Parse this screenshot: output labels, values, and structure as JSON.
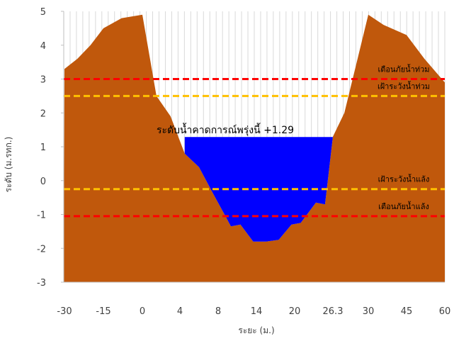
{
  "chart_data": {
    "type": "area",
    "xlabel": "ระยะ (ม.)",
    "ylabel": "ระดับ (ม.รทก.)",
    "ylim": [
      -3,
      5
    ],
    "yticks": [
      "-3",
      "-2",
      "-1",
      "0",
      "1",
      "2",
      "3",
      "4",
      "5"
    ],
    "xtick_labels": [
      "-30",
      "-15",
      "0",
      "4",
      "8",
      "14",
      "20",
      "26.3",
      "30",
      "45",
      "60"
    ],
    "grid": "vertical",
    "series": [
      {
        "kind": "ground",
        "color": "#C0580C",
        "points": [
          [
            -35,
            3.2
          ],
          [
            -30,
            3.3
          ],
          [
            -25,
            3.6
          ],
          [
            -20,
            4.0
          ],
          [
            -15,
            4.5
          ],
          [
            -8,
            4.8
          ],
          [
            0,
            4.9
          ],
          [
            1.5,
            2.5
          ],
          [
            3,
            1.9
          ],
          [
            4.5,
            0.8
          ],
          [
            6,
            0.4
          ],
          [
            7.5,
            -0.4
          ],
          [
            9,
            -1.0
          ],
          [
            10,
            -1.35
          ],
          [
            11.5,
            -1.3
          ],
          [
            13.5,
            -1.8
          ],
          [
            15.5,
            -1.8
          ],
          [
            17.5,
            -1.75
          ],
          [
            19.5,
            -1.3
          ],
          [
            21,
            -1.25
          ],
          [
            23.5,
            -0.65
          ],
          [
            25,
            -0.7
          ],
          [
            26.3,
            1.3
          ],
          [
            27.5,
            2.0
          ],
          [
            30,
            4.9
          ],
          [
            36,
            4.6
          ],
          [
            45,
            4.3
          ],
          [
            52,
            3.6
          ],
          [
            60,
            2.9
          ]
        ]
      },
      {
        "kind": "water",
        "color": "#0000FF",
        "level": 1.29,
        "x_range": [
          4.5,
          26.3
        ]
      }
    ],
    "reference_lines": [
      {
        "label": "เตือนภัยน้ำท่วม",
        "y": 3.0,
        "color": "#FF0000"
      },
      {
        "label": "เฝ้าระวังน้ำท่วม",
        "y": 2.5,
        "color": "#FFC000"
      },
      {
        "label": "เฝ้าระวังน้ำแล้ง",
        "y": -0.25,
        "color": "#FFC000"
      },
      {
        "label": "เตือนภัยน้ำแล้ง",
        "y": -1.05,
        "color": "#FF0000"
      }
    ],
    "water_label": "ระดับน้ำคาดการณ์พรุ่งนี้ +1.29"
  }
}
